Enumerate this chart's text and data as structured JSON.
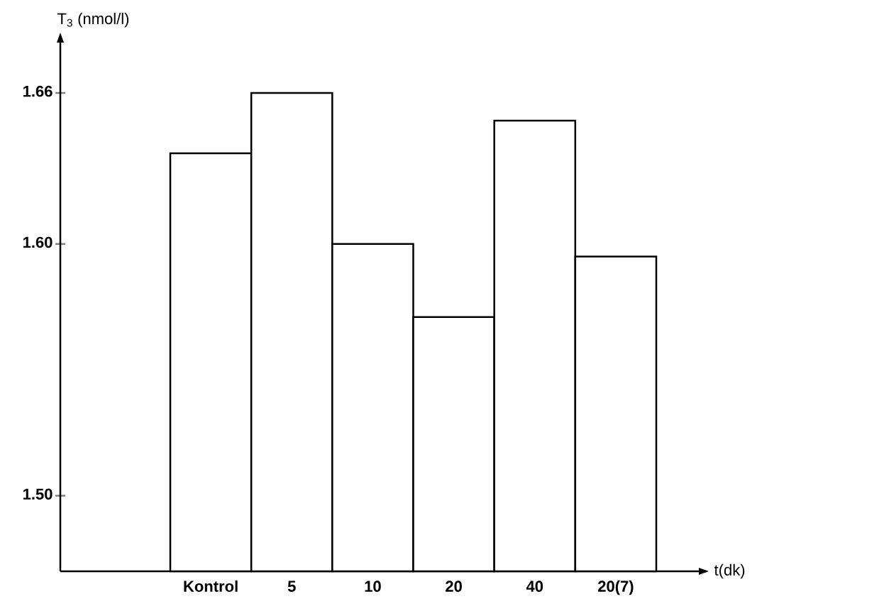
{
  "chart_data": {
    "type": "bar",
    "xlabel": "t(dk)",
    "ylabel": "T$_{3}$ (nmol/l)",
    "categories": [
      "Kontrol",
      "5",
      "10",
      "20",
      "40",
      "20(7)"
    ],
    "values": [
      1.636,
      1.66,
      1.6,
      1.571,
      1.649,
      1.595
    ],
    "color": "#ffffff",
    "ylim": [
      1.47,
      1.68
    ],
    "yticks": [
      {
        "value": 1.5,
        "label": "1.50"
      },
      {
        "value": 1.6,
        "label": "1.60"
      },
      {
        "value": 1.66,
        "label": "1.66"
      }
    ]
  }
}
